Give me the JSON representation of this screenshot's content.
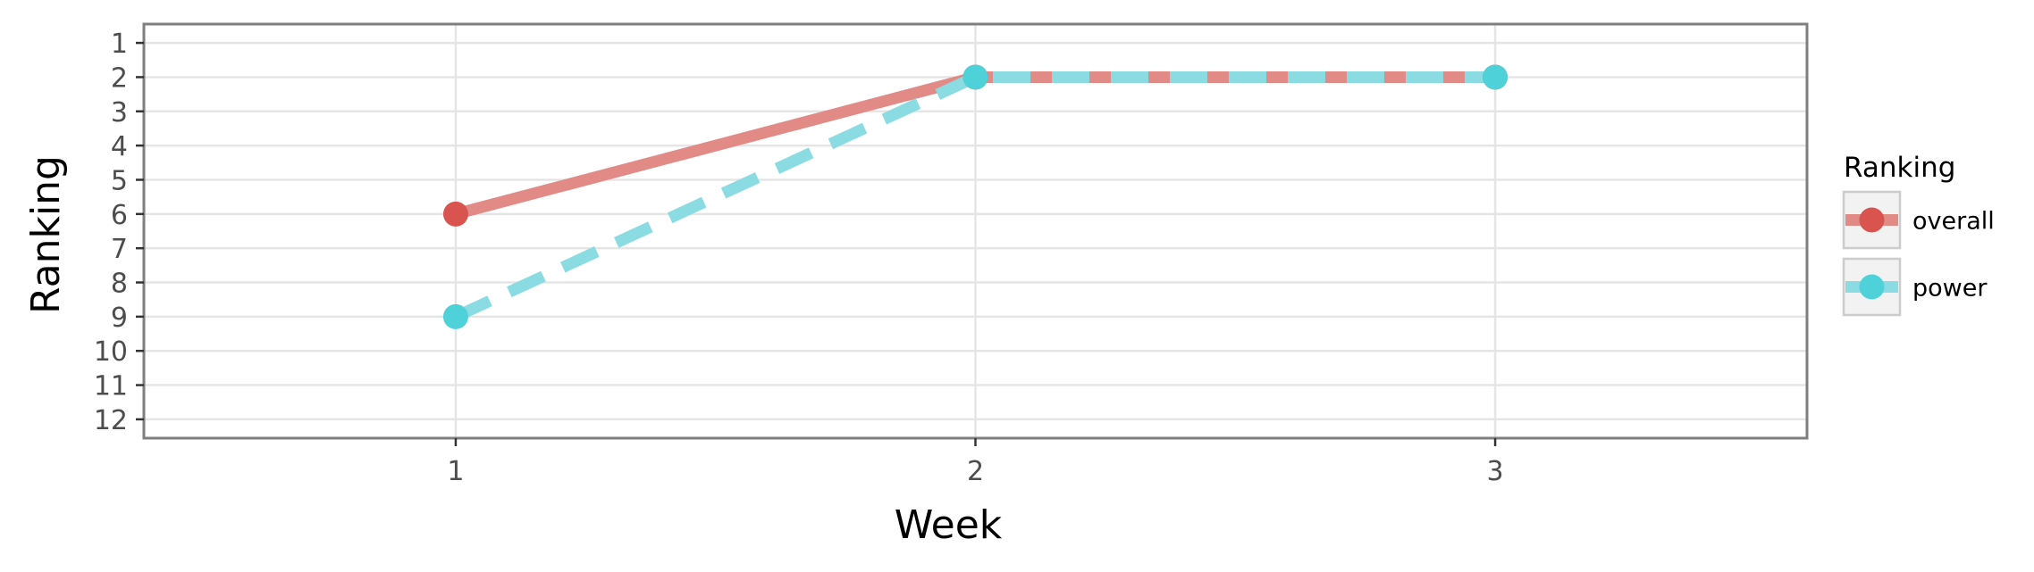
{
  "chart_data": {
    "type": "line",
    "x": [
      1,
      2,
      3
    ],
    "x_ticks": [
      "1",
      "2",
      "3"
    ],
    "y_ticks": [
      "1",
      "2",
      "3",
      "4",
      "5",
      "6",
      "7",
      "8",
      "9",
      "10",
      "11",
      "12"
    ],
    "xlim": [
      0.4,
      3.6
    ],
    "ylim": [
      12.55,
      0.45
    ],
    "y_reversed": true,
    "xlabel": "Week",
    "ylabel": "Ranking",
    "grid": true,
    "legend": {
      "title": "Ranking",
      "placement": "right"
    },
    "series": [
      {
        "name": "overall",
        "values": [
          6,
          2,
          2
        ],
        "color": "#E28A86",
        "marker_color": "#D9534F",
        "line_style": "solid"
      },
      {
        "name": "power",
        "values": [
          9,
          2,
          2
        ],
        "color": "#8ADCE2",
        "marker_color": "#4FD1D9",
        "line_style": "dashed"
      }
    ]
  }
}
